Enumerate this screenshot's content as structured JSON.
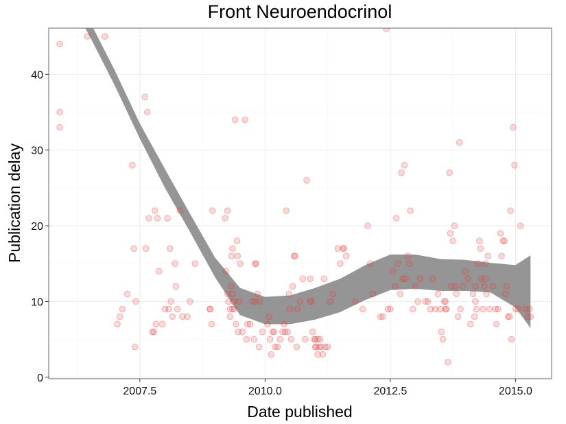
{
  "chart_data": {
    "type": "scatter",
    "title": "Front Neuroendocrinol",
    "xlabel": "Date published",
    "ylabel": "Publication delay",
    "xlim": [
      2005.68,
      2015.72
    ],
    "ylim": [
      -0.2,
      46.1
    ],
    "x_ticks": [
      2007.5,
      2010.0,
      2012.5,
      2015.0
    ],
    "x_tick_labels": [
      "2007.5",
      "2010.0",
      "2012.5",
      "2015.0"
    ],
    "y_ticks": [
      0,
      10,
      20,
      30,
      40
    ],
    "y_tick_labels": [
      "0",
      "10",
      "20",
      "30",
      "40"
    ],
    "grid": true,
    "colors": {
      "points": "#f04646",
      "band": "#8f8f8f",
      "grid": "#ebebeb",
      "border": "#7f7f7f"
    },
    "points": [
      [
        2005.9,
        44
      ],
      [
        2005.9,
        35
      ],
      [
        2005.9,
        33
      ],
      [
        2006.45,
        45
      ],
      [
        2006.8,
        45
      ],
      [
        2007.05,
        7
      ],
      [
        2007.1,
        8
      ],
      [
        2007.15,
        9
      ],
      [
        2007.25,
        11
      ],
      [
        2007.35,
        28
      ],
      [
        2007.38,
        17
      ],
      [
        2007.4,
        4
      ],
      [
        2007.42,
        10
      ],
      [
        2007.6,
        37
      ],
      [
        2007.62,
        17
      ],
      [
        2007.65,
        35
      ],
      [
        2007.68,
        21
      ],
      [
        2007.75,
        6
      ],
      [
        2007.78,
        6
      ],
      [
        2007.8,
        22
      ],
      [
        2007.82,
        7
      ],
      [
        2007.85,
        21
      ],
      [
        2007.88,
        14
      ],
      [
        2007.95,
        7
      ],
      [
        2008.0,
        9
      ],
      [
        2008.05,
        21
      ],
      [
        2008.08,
        9
      ],
      [
        2008.1,
        17
      ],
      [
        2008.12,
        10
      ],
      [
        2008.15,
        8
      ],
      [
        2008.2,
        15
      ],
      [
        2008.22,
        12
      ],
      [
        2008.25,
        9
      ],
      [
        2008.3,
        22
      ],
      [
        2008.35,
        8
      ],
      [
        2008.45,
        8
      ],
      [
        2008.5,
        10
      ],
      [
        2008.6,
        15
      ],
      [
        2008.9,
        9
      ],
      [
        2008.93,
        7
      ],
      [
        2008.95,
        22
      ],
      [
        2009.2,
        21
      ],
      [
        2009.22,
        14
      ],
      [
        2009.25,
        22
      ],
      [
        2009.27,
        10
      ],
      [
        2009.3,
        9
      ],
      [
        2009.3,
        8
      ],
      [
        2009.32,
        12
      ],
      [
        2009.33,
        16
      ],
      [
        2009.35,
        17
      ],
      [
        2009.35,
        11
      ],
      [
        2009.37,
        10
      ],
      [
        2009.38,
        9
      ],
      [
        2009.4,
        34
      ],
      [
        2009.42,
        7
      ],
      [
        2009.44,
        18
      ],
      [
        2009.45,
        16
      ],
      [
        2009.46,
        6
      ],
      [
        2009.48,
        10
      ],
      [
        2009.5,
        15
      ],
      [
        2009.55,
        6
      ],
      [
        2009.6,
        34
      ],
      [
        2009.63,
        5
      ],
      [
        2009.65,
        7
      ],
      [
        2009.7,
        7
      ],
      [
        2009.75,
        10
      ],
      [
        2009.78,
        5
      ],
      [
        2009.8,
        15
      ],
      [
        2009.82,
        15
      ],
      [
        2009.85,
        11
      ],
      [
        2009.88,
        4
      ],
      [
        2009.9,
        10
      ],
      [
        2009.95,
        6
      ],
      [
        2010.05,
        7
      ],
      [
        2010.08,
        8
      ],
      [
        2010.1,
        5
      ],
      [
        2010.12,
        3
      ],
      [
        2010.15,
        6
      ],
      [
        2010.18,
        6
      ],
      [
        2010.2,
        4
      ],
      [
        2010.25,
        4
      ],
      [
        2010.3,
        5
      ],
      [
        2010.35,
        6
      ],
      [
        2010.38,
        7
      ],
      [
        2010.4,
        6
      ],
      [
        2010.42,
        22
      ],
      [
        2010.45,
        6
      ],
      [
        2010.48,
        11
      ],
      [
        2010.5,
        9
      ],
      [
        2010.52,
        5
      ],
      [
        2010.55,
        12
      ],
      [
        2010.58,
        16
      ],
      [
        2010.6,
        16
      ],
      [
        2010.63,
        4
      ],
      [
        2010.65,
        9
      ],
      [
        2010.7,
        10
      ],
      [
        2010.75,
        13
      ],
      [
        2010.8,
        5
      ],
      [
        2010.83,
        26
      ],
      [
        2010.9,
        13
      ],
      [
        2010.92,
        10
      ],
      [
        2010.95,
        6
      ],
      [
        2010.98,
        5
      ],
      [
        2011.0,
        5
      ],
      [
        2011.02,
        4
      ],
      [
        2011.05,
        3
      ],
      [
        2011.08,
        4
      ],
      [
        2011.1,
        5
      ],
      [
        2011.12,
        4
      ],
      [
        2011.15,
        3
      ],
      [
        2011.18,
        13
      ],
      [
        2011.2,
        4
      ],
      [
        2011.25,
        4
      ],
      [
        2011.3,
        10
      ],
      [
        2011.35,
        11
      ],
      [
        2011.45,
        17
      ],
      [
        2011.5,
        15
      ],
      [
        2011.55,
        17
      ],
      [
        2011.58,
        17
      ],
      [
        2011.62,
        16
      ],
      [
        2011.8,
        10
      ],
      [
        2011.95,
        9
      ],
      [
        2012.05,
        20
      ],
      [
        2012.1,
        15
      ],
      [
        2012.15,
        11
      ],
      [
        2012.3,
        8
      ],
      [
        2012.35,
        8
      ],
      [
        2012.42,
        46
      ],
      [
        2012.45,
        9
      ],
      [
        2012.5,
        9
      ],
      [
        2012.55,
        14
      ],
      [
        2012.6,
        12
      ],
      [
        2012.62,
        21
      ],
      [
        2012.65,
        15
      ],
      [
        2012.7,
        11
      ],
      [
        2012.72,
        27
      ],
      [
        2012.75,
        13
      ],
      [
        2012.78,
        28
      ],
      [
        2012.8,
        13
      ],
      [
        2012.85,
        16
      ],
      [
        2012.88,
        15
      ],
      [
        2012.9,
        22
      ],
      [
        2012.95,
        9
      ],
      [
        2013.0,
        12
      ],
      [
        2013.05,
        10
      ],
      [
        2013.1,
        13
      ],
      [
        2013.2,
        10
      ],
      [
        2013.25,
        10
      ],
      [
        2013.3,
        9
      ],
      [
        2013.35,
        13
      ],
      [
        2013.4,
        9
      ],
      [
        2013.45,
        11
      ],
      [
        2013.5,
        9
      ],
      [
        2013.52,
        6
      ],
      [
        2013.55,
        5
      ],
      [
        2013.58,
        10
      ],
      [
        2013.6,
        10
      ],
      [
        2013.62,
        9
      ],
      [
        2013.65,
        2
      ],
      [
        2013.68,
        27
      ],
      [
        2013.7,
        19
      ],
      [
        2013.72,
        12
      ],
      [
        2013.75,
        18
      ],
      [
        2013.78,
        20
      ],
      [
        2013.8,
        12
      ],
      [
        2013.82,
        11
      ],
      [
        2013.85,
        8
      ],
      [
        2013.88,
        31
      ],
      [
        2013.9,
        9
      ],
      [
        2013.95,
        12
      ],
      [
        2014.0,
        14
      ],
      [
        2014.05,
        13
      ],
      [
        2014.1,
        7
      ],
      [
        2014.15,
        11
      ],
      [
        2014.18,
        8
      ],
      [
        2014.2,
        10
      ],
      [
        2014.22,
        9
      ],
      [
        2014.25,
        15
      ],
      [
        2014.28,
        18
      ],
      [
        2014.3,
        17
      ],
      [
        2014.32,
        13
      ],
      [
        2014.35,
        9
      ],
      [
        2014.38,
        12
      ],
      [
        2014.4,
        13
      ],
      [
        2014.42,
        11
      ],
      [
        2014.45,
        16
      ],
      [
        2014.48,
        9
      ],
      [
        2014.55,
        12
      ],
      [
        2014.6,
        9
      ],
      [
        2014.62,
        7
      ],
      [
        2014.65,
        9
      ],
      [
        2014.7,
        19
      ],
      [
        2014.72,
        16
      ],
      [
        2014.75,
        18
      ],
      [
        2014.78,
        18
      ],
      [
        2014.8,
        11
      ],
      [
        2014.82,
        12
      ],
      [
        2014.85,
        8
      ],
      [
        2014.88,
        8
      ],
      [
        2014.9,
        22
      ],
      [
        2014.92,
        5
      ],
      [
        2014.95,
        33
      ],
      [
        2014.98,
        28
      ],
      [
        2015.0,
        9
      ],
      [
        2015.05,
        9
      ],
      [
        2015.1,
        20
      ],
      [
        2015.2,
        9
      ],
      [
        2015.25,
        8
      ],
      [
        2015.28,
        9
      ],
      [
        2015.3,
        8
      ],
      [
        2008.9,
        9
      ],
      [
        2009.25,
        11
      ],
      [
        2009.35,
        9
      ],
      [
        2009.8,
        10
      ],
      [
        2010.9,
        10
      ],
      [
        2011.0,
        4
      ],
      [
        2011.05,
        5
      ],
      [
        2013.6,
        9
      ],
      [
        2014.2,
        12
      ],
      [
        2014.4,
        15
      ]
    ],
    "smooth": {
      "x": [
        2006.0,
        2006.5,
        2007.0,
        2007.5,
        2008.0,
        2008.5,
        2009.0,
        2009.5,
        2010.0,
        2010.5,
        2011.0,
        2011.5,
        2012.0,
        2012.5,
        2013.0,
        2013.5,
        2014.0,
        2014.5,
        2015.0,
        2015.3
      ],
      "lower": [
        51,
        45,
        38.5,
        31.5,
        25,
        19.2,
        13.2,
        8.2,
        7,
        7,
        7.6,
        8.6,
        10.2,
        11.5,
        11.7,
        11.4,
        11.4,
        11.2,
        9.2,
        6.5
      ],
      "upper": [
        53,
        47,
        40.5,
        33.5,
        27.5,
        21.6,
        15.8,
        11.8,
        10.6,
        10.8,
        11.8,
        13,
        14.8,
        16.2,
        16.2,
        15.6,
        15.5,
        15.1,
        14.8,
        16.1
      ]
    }
  }
}
